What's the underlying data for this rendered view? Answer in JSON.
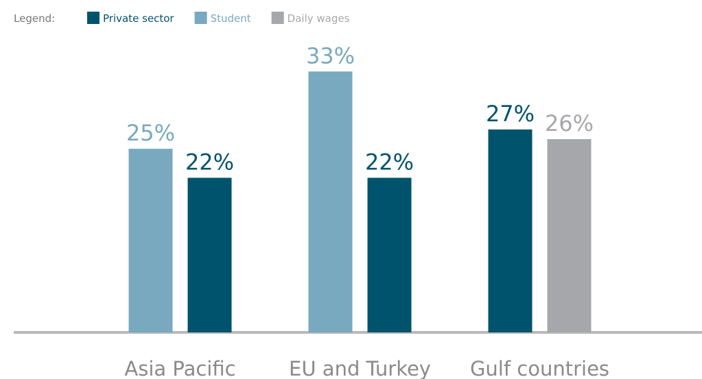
{
  "chart_data": {
    "type": "bar",
    "legend_title": "Legend:",
    "categories": [
      "Asia Pacific",
      "EU and Turkey",
      "Gulf countries"
    ],
    "series": [
      {
        "name": "Private sector",
        "color": "#00536d",
        "values": [
          22,
          22,
          27
        ],
        "value_labels": [
          "22%",
          "22%",
          "27%"
        ]
      },
      {
        "name": "Student",
        "color": "#78a9bf",
        "values": [
          25,
          33,
          null
        ],
        "value_labels": [
          "25%",
          "33%",
          null
        ]
      },
      {
        "name": "Daily wages",
        "color": "#a6a7aa",
        "values": [
          null,
          null,
          26
        ],
        "value_labels": [
          null,
          null,
          "26%"
        ]
      }
    ],
    "ylim": [
      6,
      36
    ],
    "legend": "top-left"
  }
}
